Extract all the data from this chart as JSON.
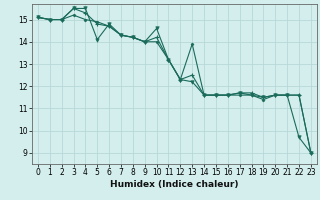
{
  "xlabel": "Humidex (Indice chaleur)",
  "xlim": [
    -0.5,
    23.5
  ],
  "ylim": [
    8.5,
    15.7
  ],
  "bg_color": "#d4eeee",
  "grid_color": "#b8d8d8",
  "line_color": "#1a6b5a",
  "line1_y": [
    15.1,
    15.0,
    15.0,
    15.5,
    15.5,
    14.1,
    14.8,
    14.3,
    14.2,
    14.0,
    14.6,
    13.2,
    12.3,
    12.2,
    11.6,
    11.6,
    11.6,
    11.7,
    11.6,
    11.5,
    11.6,
    11.6,
    9.7,
    9.0
  ],
  "line2_y": [
    15.1,
    15.0,
    15.0,
    15.5,
    15.3,
    14.8,
    14.7,
    14.3,
    14.2,
    14.0,
    14.2,
    13.2,
    12.3,
    12.5,
    11.6,
    11.6,
    11.6,
    11.7,
    11.7,
    11.5,
    11.6,
    11.6,
    11.6,
    9.0
  ],
  "line3_y": [
    15.1,
    15.0,
    15.0,
    15.2,
    15.0,
    14.9,
    14.7,
    14.3,
    14.2,
    14.0,
    14.0,
    13.2,
    12.3,
    13.9,
    11.6,
    11.6,
    11.6,
    11.6,
    11.6,
    11.4,
    11.6,
    11.6,
    11.6,
    9.0
  ],
  "xtick_labels": [
    "0",
    "1",
    "2",
    "3",
    "4",
    "5",
    "6",
    "7",
    "8",
    "9",
    "10",
    "11",
    "12",
    "13",
    "14",
    "15",
    "16",
    "17",
    "18",
    "19",
    "20",
    "21",
    "22",
    "23"
  ],
  "ytick_vals": [
    9,
    10,
    11,
    12,
    13,
    14,
    15
  ],
  "tick_fontsize": 5.5,
  "xlabel_fontsize": 6.5
}
